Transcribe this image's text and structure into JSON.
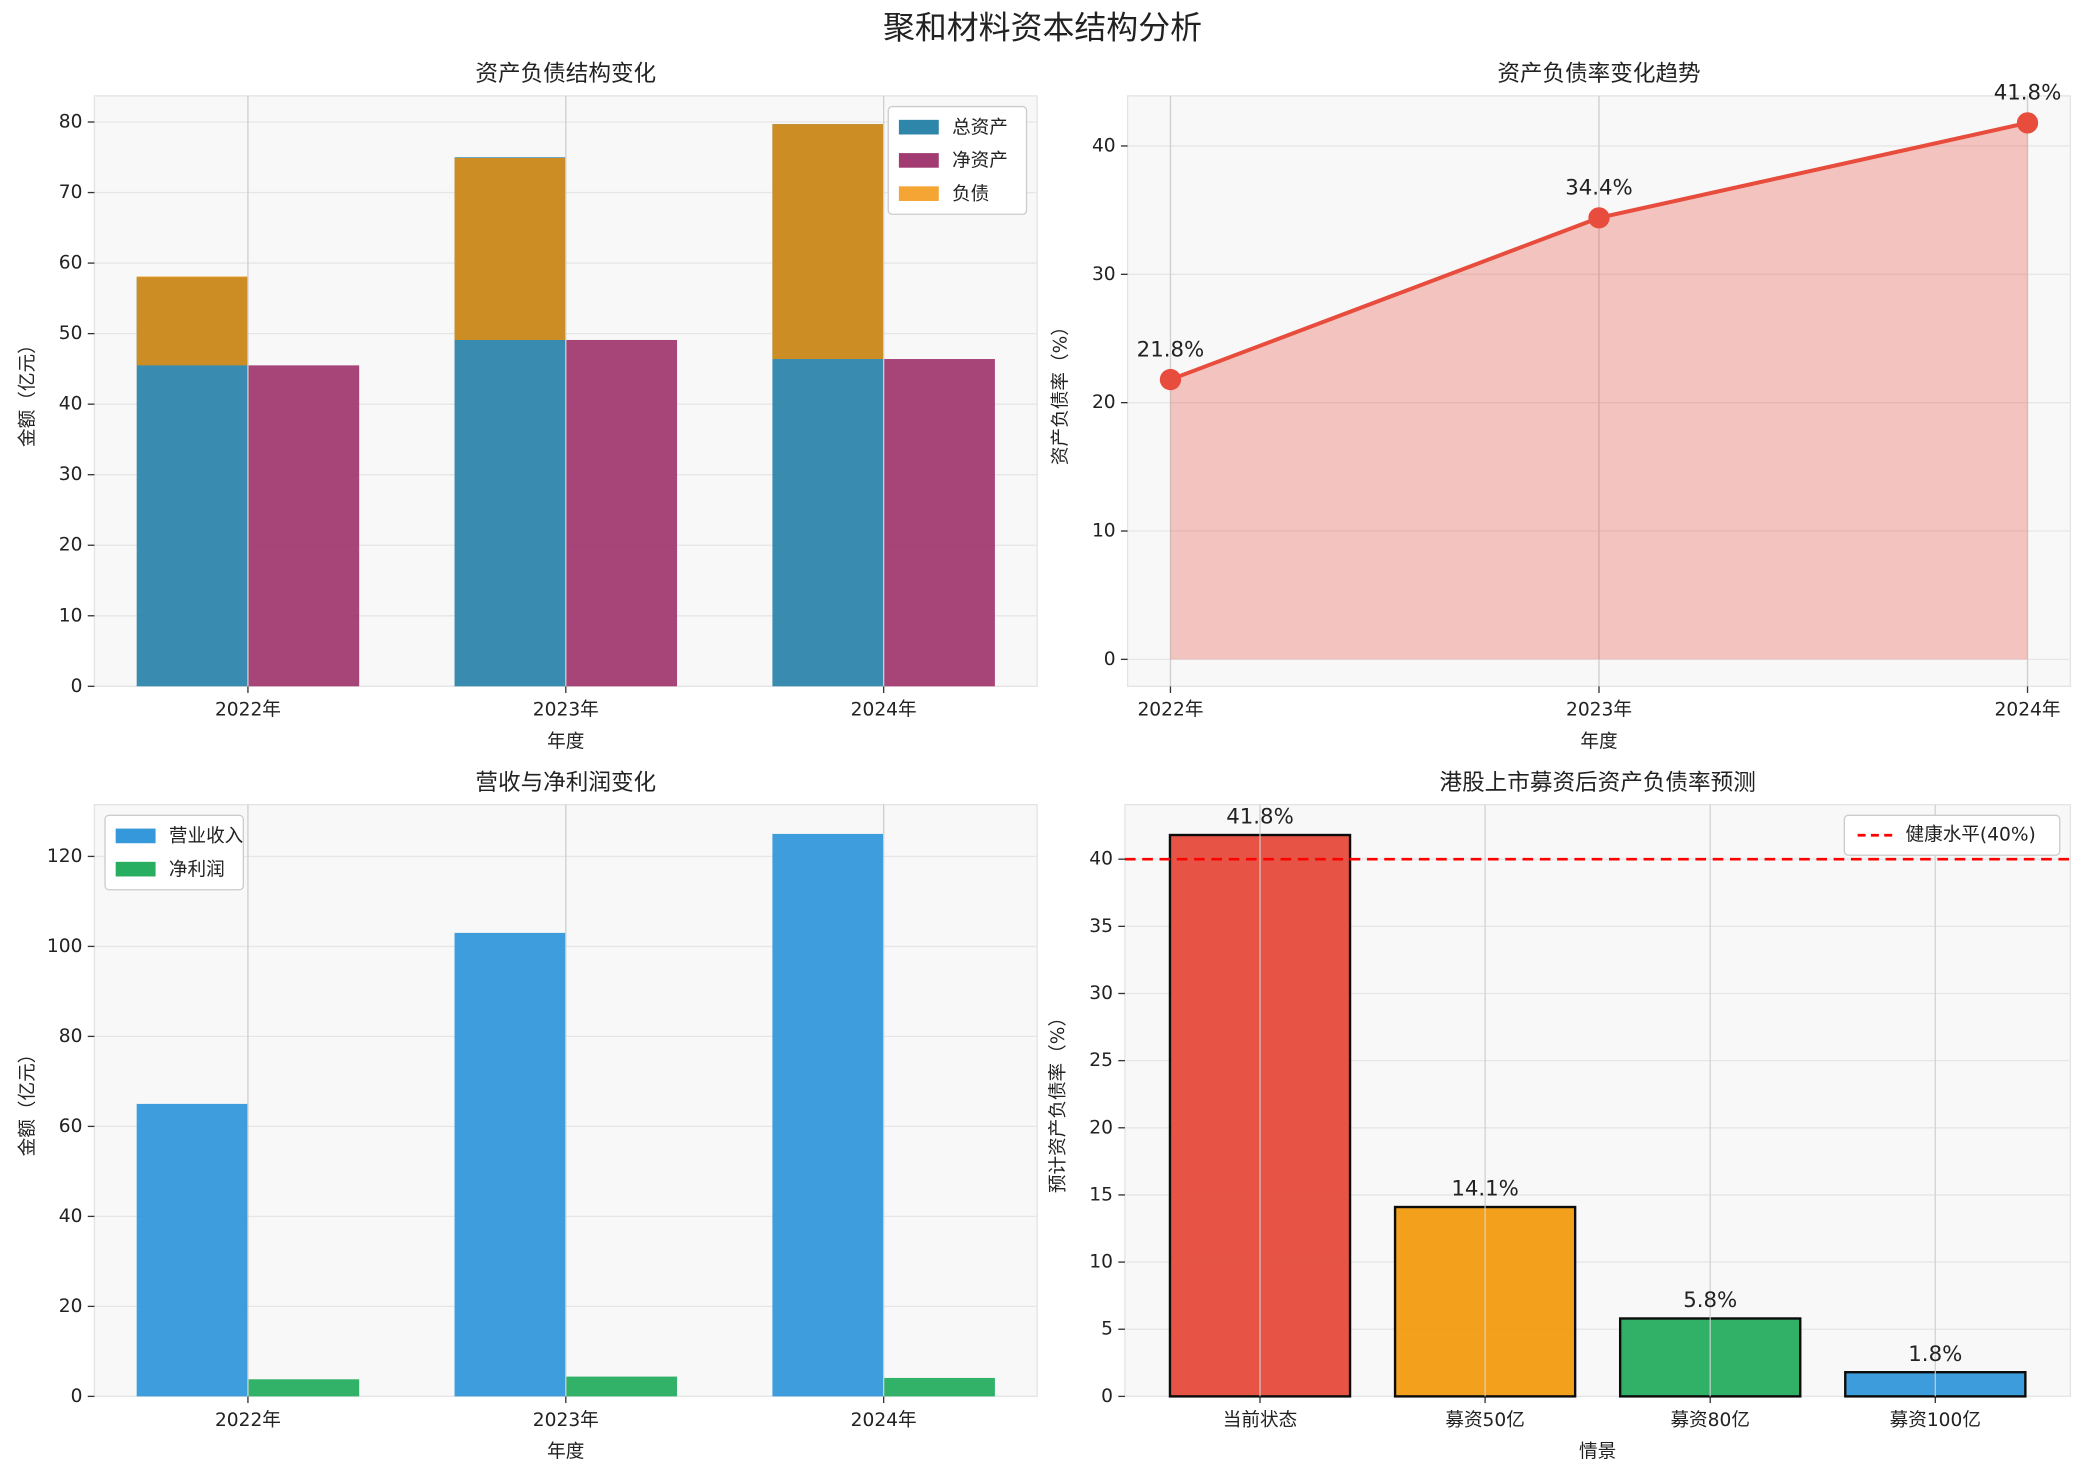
{
  "title": "聚和材料资本结构分析",
  "chart_data": [
    {
      "type": "bar",
      "title": "资产负债结构变化",
      "x_label": "年度",
      "y_label": "金额（亿元）",
      "categories": [
        "2022年",
        "2023年",
        "2024年"
      ],
      "series": [
        {
          "name": "总资产",
          "color": "#2e86ab",
          "values": [
            58,
            75,
            79.7
          ]
        },
        {
          "name": "净资产",
          "color": "#a23b72",
          "values": [
            45.5,
            49.1,
            46.4
          ]
        },
        {
          "name": "负债",
          "color": "#f18f01",
          "values": [
            12.6,
            25.8,
            33.3
          ]
        }
      ],
      "ylim": [
        0,
        83.7
      ],
      "yticks": [
        0,
        10,
        20,
        30,
        40,
        50,
        60,
        70,
        80
      ],
      "grid": true,
      "legend": "upper right"
    },
    {
      "type": "line",
      "title": "资产负债率变化趋势",
      "x_label": "年度",
      "y_label": "资产负债率（%）",
      "categories": [
        "2022年",
        "2023年",
        "2024年"
      ],
      "values": [
        21.8,
        34.4,
        41.8
      ],
      "value_labels": [
        "21.8%",
        "34.4%",
        "41.8%"
      ],
      "color": "#e74c3c",
      "fill": true,
      "ylim": [
        -2.1,
        43.9
      ],
      "yticks": [
        0,
        10,
        20,
        30,
        40
      ],
      "grid": true
    },
    {
      "type": "bar",
      "title": "营收与净利润变化",
      "x_label": "年度",
      "y_label": "金额（亿元）",
      "categories": [
        "2022年",
        "2023年",
        "2024年"
      ],
      "series": [
        {
          "name": "营业收入",
          "color": "#3498db",
          "values": [
            65,
            103,
            125
          ]
        },
        {
          "name": "净利润",
          "color": "#27ae60",
          "values": [
            3.8,
            4.4,
            4.1
          ]
        }
      ],
      "ylim": [
        0,
        131.5
      ],
      "yticks": [
        0,
        20,
        40,
        60,
        80,
        100,
        120
      ],
      "grid": true,
      "legend": "upper left"
    },
    {
      "type": "bar",
      "title": "港股上市募资后资产负债率预测",
      "x_label": "情景",
      "y_label": "预计资产负债率（%）",
      "categories": [
        "当前状态",
        "募资50亿",
        "募资80亿",
        "募资100亿"
      ],
      "values": [
        41.8,
        14.1,
        5.8,
        1.8
      ],
      "value_labels": [
        "41.8%",
        "14.1%",
        "5.8%",
        "1.8%"
      ],
      "colors": [
        "#e74c3c",
        "#f39c12",
        "#27ae60",
        "#3498db"
      ],
      "reference_line": {
        "value": 40,
        "label": "健康水平(40%)",
        "color": "#ff0000"
      },
      "ylim": [
        0,
        44.06
      ],
      "yticks": [
        0,
        5,
        10,
        15,
        20,
        25,
        30,
        35,
        40
      ],
      "grid": true,
      "legend": "upper right"
    }
  ]
}
